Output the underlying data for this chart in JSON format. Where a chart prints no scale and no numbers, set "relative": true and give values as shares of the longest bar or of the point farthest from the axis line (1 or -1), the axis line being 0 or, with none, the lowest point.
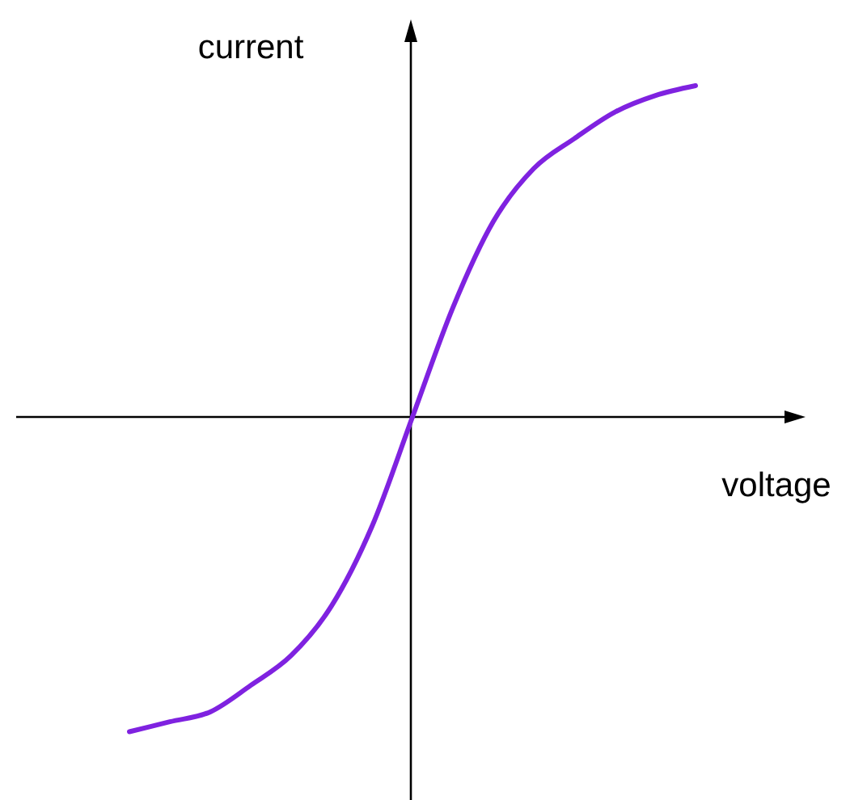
{
  "chart_data": {
    "type": "line",
    "relative": true,
    "xlabel": "voltage",
    "ylabel": "current",
    "categories": [
      null,
      null,
      null,
      null,
      null,
      null,
      null,
      null,
      null,
      null,
      null,
      null,
      null,
      null,
      null
    ],
    "series": [
      {
        "color": "#7f22e0",
        "values": [
          -0.95,
          -0.92,
          -0.89,
          -0.81,
          -0.72,
          -0.57,
          -0.33,
          0,
          0.33,
          0.59,
          0.75,
          0.84,
          0.92,
          0.97,
          1
        ]
      }
    ],
    "marker": "none",
    "line_style": "solid"
  }
}
